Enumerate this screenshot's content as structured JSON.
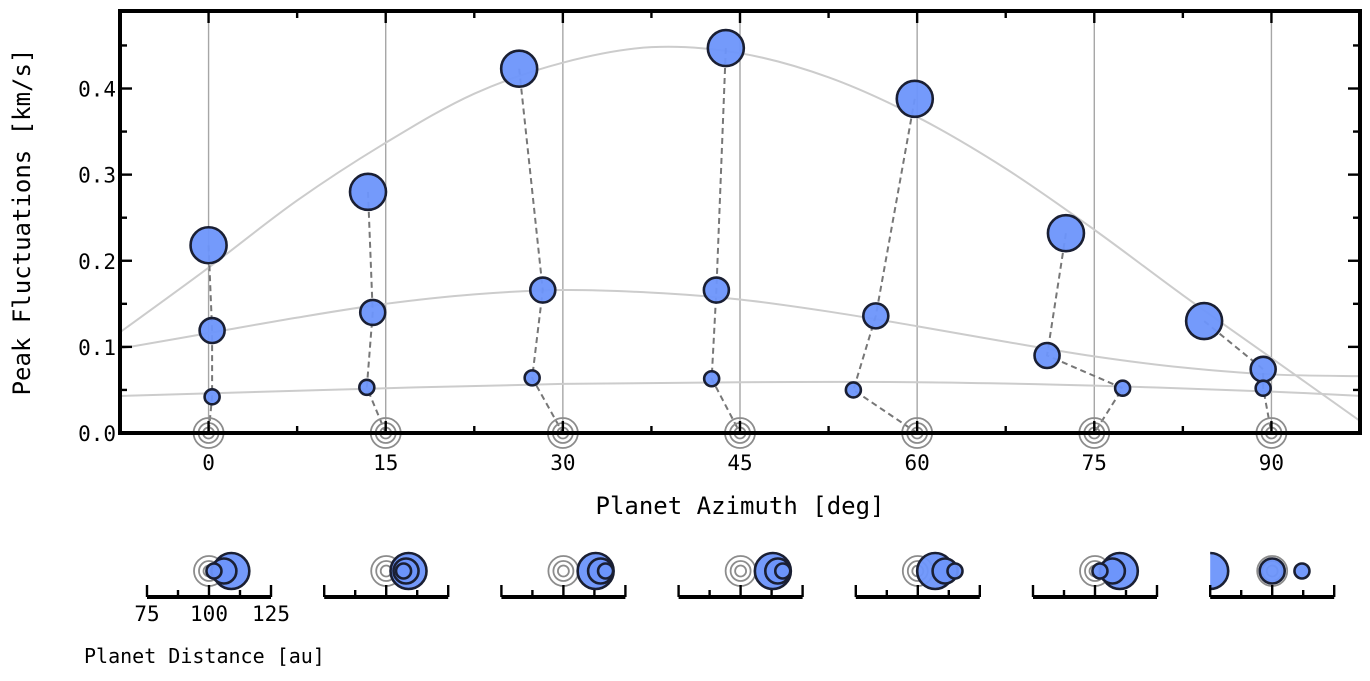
{
  "chart_data": [
    {
      "type": "scatter",
      "title": "",
      "xlabel": "Planet Azimuth [deg]",
      "ylabel": "Peak Fluctuations [km/s]",
      "xlim": [
        -7.5,
        97.5
      ],
      "ylim": [
        0.0,
        0.49
      ],
      "xticks": [
        0,
        15,
        30,
        45,
        60,
        75,
        90
      ],
      "xtick_labels": [
        "0",
        "15",
        "30",
        "45",
        "60",
        "75",
        "90"
      ],
      "yticks": [
        0.0,
        0.1,
        0.2,
        0.3,
        0.4
      ],
      "ytick_labels": [
        "0.0",
        "0.1",
        "0.2",
        "0.3",
        "0.4"
      ],
      "grid": "vertical lines at planet azimuths",
      "marker_color": "#6d95fb",
      "marker_edge_color": "#1a1f33",
      "groups": [
        {
          "planet_azimuth": 0,
          "points": [
            {
              "x": 0.0,
              "y": 0.218,
              "size": "large"
            },
            {
              "x": 0.3,
              "y": 0.119,
              "size": "medium"
            },
            {
              "x": 0.3,
              "y": 0.042,
              "size": "small"
            }
          ]
        },
        {
          "planet_azimuth": 15,
          "points": [
            {
              "x": 13.5,
              "y": 0.28,
              "size": "large"
            },
            {
              "x": 13.9,
              "y": 0.14,
              "size": "medium"
            },
            {
              "x": 13.4,
              "y": 0.053,
              "size": "small"
            }
          ]
        },
        {
          "planet_azimuth": 30,
          "points": [
            {
              "x": 26.3,
              "y": 0.423,
              "size": "large"
            },
            {
              "x": 28.3,
              "y": 0.166,
              "size": "medium"
            },
            {
              "x": 27.4,
              "y": 0.064,
              "size": "small"
            }
          ]
        },
        {
          "planet_azimuth": 45,
          "points": [
            {
              "x": 43.8,
              "y": 0.447,
              "size": "large"
            },
            {
              "x": 43.0,
              "y": 0.166,
              "size": "medium"
            },
            {
              "x": 42.6,
              "y": 0.063,
              "size": "small"
            }
          ]
        },
        {
          "planet_azimuth": 60,
          "points": [
            {
              "x": 59.8,
              "y": 0.388,
              "size": "large"
            },
            {
              "x": 56.5,
              "y": 0.136,
              "size": "medium"
            },
            {
              "x": 54.6,
              "y": 0.05,
              "size": "small"
            }
          ]
        },
        {
          "planet_azimuth": 75,
          "points": [
            {
              "x": 72.6,
              "y": 0.232,
              "size": "large"
            },
            {
              "x": 71.0,
              "y": 0.09,
              "size": "medium"
            },
            {
              "x": 77.4,
              "y": 0.052,
              "size": "small"
            }
          ]
        },
        {
          "planet_azimuth": 90,
          "points": [
            {
              "x": 84.3,
              "y": 0.13,
              "size": "large"
            },
            {
              "x": 89.3,
              "y": 0.074,
              "size": "medium"
            },
            {
              "x": 89.3,
              "y": 0.052,
              "size": "small"
            }
          ]
        }
      ],
      "trend_curves": [
        {
          "points": [
            [
              -7.5,
              0.117
            ],
            [
              0,
              0.192
            ],
            [
              7.5,
              0.27
            ],
            [
              15,
              0.337
            ],
            [
              22.5,
              0.394
            ],
            [
              30,
              0.43
            ],
            [
              37.5,
              0.448
            ],
            [
              45,
              0.441
            ],
            [
              52.5,
              0.413
            ],
            [
              60,
              0.367
            ],
            [
              67.5,
              0.307
            ],
            [
              75,
              0.236
            ],
            [
              82.5,
              0.16
            ],
            [
              90,
              0.087
            ],
            [
              97.5,
              0.014
            ]
          ]
        },
        {
          "points": [
            [
              -7.5,
              0.098
            ],
            [
              0,
              0.116
            ],
            [
              7.5,
              0.134
            ],
            [
              15,
              0.15
            ],
            [
              22.5,
              0.161
            ],
            [
              30,
              0.166
            ],
            [
              37.5,
              0.163
            ],
            [
              45,
              0.155
            ],
            [
              52.5,
              0.141
            ],
            [
              60,
              0.124
            ],
            [
              67.5,
              0.106
            ],
            [
              75,
              0.089
            ],
            [
              82.5,
              0.076
            ],
            [
              90,
              0.068
            ],
            [
              97.5,
              0.066
            ]
          ]
        },
        {
          "points": [
            [
              -7.5,
              0.043
            ],
            [
              0,
              0.046
            ],
            [
              15,
              0.052
            ],
            [
              30,
              0.057
            ],
            [
              45,
              0.059
            ],
            [
              60,
              0.059
            ],
            [
              75,
              0.055
            ],
            [
              90,
              0.048
            ],
            [
              97.5,
              0.043
            ]
          ]
        }
      ]
    },
    {
      "type": "scatter",
      "title": "",
      "xlabel": "Planet Distance [au]",
      "xlim": [
        75,
        125
      ],
      "xticks": [
        75,
        100,
        125
      ],
      "xtick_labels": [
        "75",
        "100",
        "125"
      ],
      "reference_distance": 100,
      "panels": [
        {
          "planet_azimuth": 0,
          "distances": [
            109,
            106,
            102
          ]
        },
        {
          "planet_azimuth": 15,
          "distances": [
            109,
            108,
            107
          ]
        },
        {
          "planet_azimuth": 30,
          "distances": [
            113,
            115,
            117
          ]
        },
        {
          "planet_azimuth": 45,
          "distances": [
            113,
            115,
            117
          ]
        },
        {
          "planet_azimuth": 60,
          "distances": [
            107,
            111,
            115
          ]
        },
        {
          "planet_azimuth": 75,
          "distances": [
            110,
            107,
            102
          ]
        },
        {
          "planet_azimuth": 90,
          "distances": [
            75,
            100,
            112
          ]
        }
      ]
    }
  ]
}
